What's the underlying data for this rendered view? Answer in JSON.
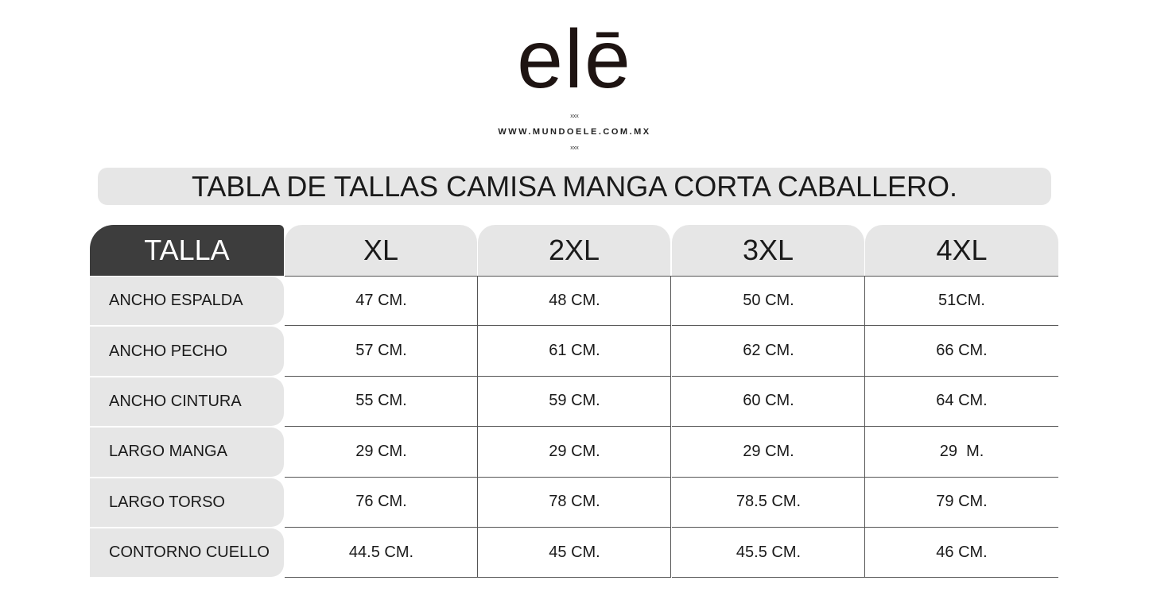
{
  "header": {
    "logo": "elē",
    "mark_top": "xxx",
    "website": "WWW.MUNDOELE.COM.MX",
    "mark_bottom": "xxx"
  },
  "title": "TABLA DE TALLAS CAMISA MANGA CORTA CABALLERO.",
  "table": {
    "columns": [
      "TALLA",
      "XL",
      "2XL",
      "3XL",
      "4XL"
    ],
    "rows": [
      [
        "ANCHO ESPALDA",
        "47 CM.",
        "48 CM.",
        "50 CM.",
        "51CM."
      ],
      [
        "ANCHO PECHO",
        "57 CM.",
        "61 CM.",
        "62 CM.",
        "66 CM."
      ],
      [
        "ANCHO CINTURA",
        "55 CM.",
        "59 CM.",
        "60 CM.",
        "64 CM."
      ],
      [
        "LARGO MANGA",
        "29 CM.",
        "29 CM.",
        "29 CM.",
        "29  M."
      ],
      [
        "LARGO TORSO",
        "76 CM.",
        "78 CM.",
        "78.5 CM.",
        "79 CM."
      ],
      [
        "CONTORNO CUELLO",
        "44.5 CM.",
        "45 CM.",
        "45.5 CM.",
        "46 CM."
      ]
    ]
  }
}
